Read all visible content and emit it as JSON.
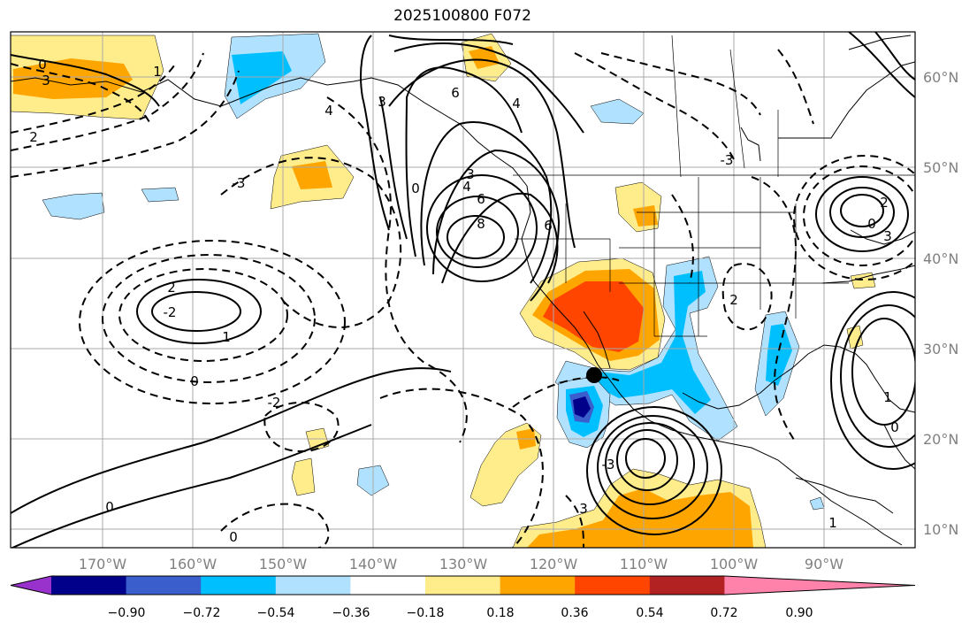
{
  "title": "2025100800 F072",
  "lon_labels": [
    "170°W",
    "160°W",
    "150°W",
    "140°W",
    "130°W",
    "120°W",
    "110°W",
    "100°W",
    "90°W"
  ],
  "lat_labels": [
    "60°N",
    "50°N",
    "40°N",
    "30°N",
    "20°N",
    "10°N"
  ],
  "colorbar": {
    "tick_labels": [
      "−0.90",
      "−0.72",
      "−0.54",
      "−0.36",
      "−0.18",
      "0.18",
      "0.36",
      "0.54",
      "0.72",
      "0.90"
    ],
    "colors": [
      "#9932cc",
      "#00008b",
      "#3a5fcd",
      "#00bfff",
      "#b0e2ff",
      "#ffffff",
      "#ffec8b",
      "#ffa500",
      "#ff4500",
      "#b22222",
      "#ff82ab"
    ]
  },
  "contour_labels": [
    "0",
    "3",
    "2",
    "1",
    "4",
    "-3",
    "0",
    "6",
    "4",
    "3",
    "8",
    "6",
    "4",
    "3",
    "2",
    "-2",
    "6",
    "-3",
    "2",
    "1",
    "0",
    "-2",
    "0",
    "0",
    "3",
    "-3",
    "0",
    "3",
    "2",
    "1",
    "0",
    "1"
  ],
  "marker": "station-dot"
}
